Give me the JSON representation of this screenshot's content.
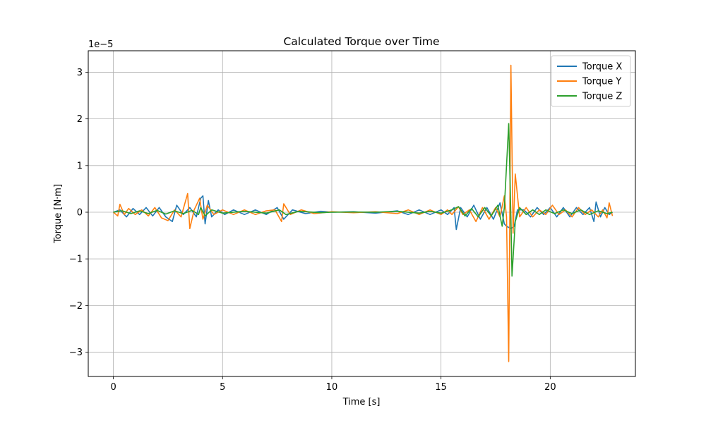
{
  "chart_data": {
    "type": "line",
    "title": "Calculated Torque over Time",
    "xlabel": "Time [s]",
    "ylabel": "Torque [N·m]",
    "y_offset_text": "1e−5",
    "y_scale": 1e-05,
    "xlim": [
      -1.15,
      23.9
    ],
    "ylim": [
      -3.52,
      3.46
    ],
    "xticks": [
      0,
      5,
      10,
      15,
      20
    ],
    "yticks": [
      -3,
      -2,
      -1,
      0,
      1,
      2,
      3
    ],
    "ytick_labels": [
      "−3",
      "−2",
      "−1",
      "0",
      "1",
      "2",
      "3"
    ],
    "grid": true,
    "legend_position": "top-right",
    "series": [
      {
        "name": "Torque X",
        "color": "#1f77b4",
        "points": [
          [
            0,
            0
          ],
          [
            0.3,
            0.05
          ],
          [
            0.6,
            -0.1
          ],
          [
            0.9,
            0.08
          ],
          [
            1.2,
            -0.05
          ],
          [
            1.5,
            0.1
          ],
          [
            1.8,
            -0.08
          ],
          [
            2.1,
            0.1
          ],
          [
            2.4,
            -0.1
          ],
          [
            2.7,
            -0.2
          ],
          [
            2.9,
            0.15
          ],
          [
            3.2,
            -0.05
          ],
          [
            3.5,
            0.1
          ],
          [
            3.8,
            -0.1
          ],
          [
            4.0,
            0.3
          ],
          [
            4.1,
            0.35
          ],
          [
            4.2,
            -0.25
          ],
          [
            4.35,
            0.25
          ],
          [
            4.5,
            -0.1
          ],
          [
            4.8,
            0.05
          ],
          [
            5.1,
            -0.05
          ],
          [
            5.5,
            0.05
          ],
          [
            6,
            -0.05
          ],
          [
            6.5,
            0.05
          ],
          [
            7,
            -0.05
          ],
          [
            7.5,
            0.1
          ],
          [
            7.8,
            -0.15
          ],
          [
            8.2,
            0.05
          ],
          [
            8.8,
            -0.03
          ],
          [
            9.5,
            0.02
          ],
          [
            10,
            0
          ],
          [
            11,
            0.01
          ],
          [
            12,
            -0.02
          ],
          [
            13,
            0.03
          ],
          [
            13.5,
            -0.05
          ],
          [
            14,
            0.05
          ],
          [
            14.5,
            -0.05
          ],
          [
            15,
            0.05
          ],
          [
            15.3,
            -0.05
          ],
          [
            15.6,
            0.1
          ],
          [
            15.7,
            -0.37
          ],
          [
            15.9,
            0.1
          ],
          [
            16.2,
            -0.1
          ],
          [
            16.5,
            0.15
          ],
          [
            16.8,
            -0.15
          ],
          [
            17.1,
            0.1
          ],
          [
            17.4,
            -0.15
          ],
          [
            17.7,
            0.2
          ],
          [
            17.9,
            -0.25
          ],
          [
            18.0,
            -0.3
          ],
          [
            18.2,
            -0.35
          ],
          [
            18.35,
            -0.3
          ],
          [
            18.5,
            0.05
          ],
          [
            18.8,
            0.05
          ],
          [
            19.1,
            -0.1
          ],
          [
            19.4,
            0.1
          ],
          [
            19.7,
            -0.05
          ],
          [
            20.0,
            0.1
          ],
          [
            20.3,
            -0.1
          ],
          [
            20.6,
            0.1
          ],
          [
            20.9,
            -0.1
          ],
          [
            21.2,
            0.1
          ],
          [
            21.5,
            -0.05
          ],
          [
            21.8,
            0.1
          ],
          [
            22.0,
            -0.2
          ],
          [
            22.1,
            0.22
          ],
          [
            22.3,
            -0.1
          ],
          [
            22.5,
            0.1
          ],
          [
            22.7,
            -0.05
          ],
          [
            22.85,
            0.0
          ]
        ]
      },
      {
        "name": "Torque Y",
        "color": "#ff7f0e",
        "points": [
          [
            0,
            0
          ],
          [
            0.2,
            -0.08
          ],
          [
            0.3,
            0.17
          ],
          [
            0.5,
            -0.05
          ],
          [
            0.7,
            0.08
          ],
          [
            1.0,
            -0.05
          ],
          [
            1.3,
            0.05
          ],
          [
            1.6,
            -0.08
          ],
          [
            1.9,
            0.1
          ],
          [
            2.2,
            -0.12
          ],
          [
            2.5,
            -0.18
          ],
          [
            2.8,
            0.05
          ],
          [
            3.1,
            -0.1
          ],
          [
            3.4,
            0.4
          ],
          [
            3.5,
            -0.35
          ],
          [
            3.7,
            0.05
          ],
          [
            3.95,
            0.3
          ],
          [
            4.1,
            -0.15
          ],
          [
            4.3,
            0.15
          ],
          [
            4.6,
            -0.05
          ],
          [
            5.0,
            0.05
          ],
          [
            5.5,
            -0.05
          ],
          [
            6.0,
            0.05
          ],
          [
            6.5,
            -0.05
          ],
          [
            7.0,
            0.03
          ],
          [
            7.4,
            0.05
          ],
          [
            7.7,
            -0.2
          ],
          [
            7.8,
            0.18
          ],
          [
            8.1,
            -0.05
          ],
          [
            8.6,
            0.05
          ],
          [
            9.2,
            -0.03
          ],
          [
            10,
            0.01
          ],
          [
            11,
            -0.01
          ],
          [
            12,
            0.01
          ],
          [
            13,
            -0.03
          ],
          [
            13.5,
            0.05
          ],
          [
            14,
            -0.05
          ],
          [
            14.5,
            0.05
          ],
          [
            15,
            -0.05
          ],
          [
            15.3,
            0.05
          ],
          [
            15.5,
            -0.05
          ],
          [
            15.8,
            0.12
          ],
          [
            16.0,
            -0.05
          ],
          [
            16.3,
            0.05
          ],
          [
            16.6,
            -0.2
          ],
          [
            16.9,
            0.1
          ],
          [
            17.2,
            -0.15
          ],
          [
            17.5,
            0.1
          ],
          [
            17.7,
            -0.1
          ],
          [
            17.9,
            0.35
          ],
          [
            18.0,
            -0.1
          ],
          [
            18.1,
            -3.2
          ],
          [
            18.2,
            3.15
          ],
          [
            18.3,
            -0.45
          ],
          [
            18.4,
            0.82
          ],
          [
            18.6,
            -0.1
          ],
          [
            18.9,
            0.1
          ],
          [
            19.2,
            -0.1
          ],
          [
            19.5,
            0.05
          ],
          [
            19.8,
            -0.05
          ],
          [
            20.1,
            0.15
          ],
          [
            20.4,
            -0.05
          ],
          [
            20.7,
            0.05
          ],
          [
            21.0,
            -0.1
          ],
          [
            21.3,
            0.1
          ],
          [
            21.6,
            -0.05
          ],
          [
            21.9,
            0.05
          ],
          [
            22.2,
            -0.1
          ],
          [
            22.4,
            0.05
          ],
          [
            22.6,
            -0.12
          ],
          [
            22.7,
            0.2
          ],
          [
            22.85,
            -0.08
          ]
        ]
      },
      {
        "name": "Torque Z",
        "color": "#2ca02c",
        "points": [
          [
            0,
            0
          ],
          [
            0.4,
            0.03
          ],
          [
            0.8,
            -0.03
          ],
          [
            1.2,
            0.03
          ],
          [
            1.6,
            -0.03
          ],
          [
            2.0,
            0.04
          ],
          [
            2.4,
            -0.04
          ],
          [
            2.8,
            0.03
          ],
          [
            3.2,
            -0.03
          ],
          [
            3.6,
            0.04
          ],
          [
            3.9,
            -0.05
          ],
          [
            4.0,
            0.1
          ],
          [
            4.2,
            -0.08
          ],
          [
            4.5,
            0.05
          ],
          [
            5.0,
            -0.02
          ],
          [
            6,
            0.02
          ],
          [
            7,
            -0.02
          ],
          [
            7.6,
            0.05
          ],
          [
            7.9,
            -0.05
          ],
          [
            8.5,
            0.02
          ],
          [
            9.5,
            -0.01
          ],
          [
            10,
            0
          ],
          [
            11,
            0.005
          ],
          [
            12,
            0
          ],
          [
            13,
            0.02
          ],
          [
            14,
            -0.02
          ],
          [
            14.5,
            0.02
          ],
          [
            15,
            -0.02
          ],
          [
            15.5,
            0.05
          ],
          [
            15.8,
            0.12
          ],
          [
            16.1,
            -0.08
          ],
          [
            16.4,
            0.08
          ],
          [
            16.7,
            -0.1
          ],
          [
            17.0,
            0.1
          ],
          [
            17.3,
            -0.08
          ],
          [
            17.6,
            0.15
          ],
          [
            17.8,
            -0.3
          ],
          [
            17.9,
            0.1
          ],
          [
            18.1,
            1.9
          ],
          [
            18.2,
            -0.1
          ],
          [
            18.25,
            -1.37
          ],
          [
            18.4,
            -0.2
          ],
          [
            18.6,
            0.1
          ],
          [
            18.9,
            -0.05
          ],
          [
            19.2,
            0.05
          ],
          [
            19.5,
            -0.05
          ],
          [
            19.8,
            0.05
          ],
          [
            20.2,
            -0.03
          ],
          [
            20.6,
            0.05
          ],
          [
            21.0,
            -0.03
          ],
          [
            21.4,
            0.05
          ],
          [
            21.8,
            -0.05
          ],
          [
            22.2,
            0.03
          ],
          [
            22.6,
            -0.03
          ],
          [
            22.85,
            0.0
          ]
        ]
      }
    ]
  }
}
